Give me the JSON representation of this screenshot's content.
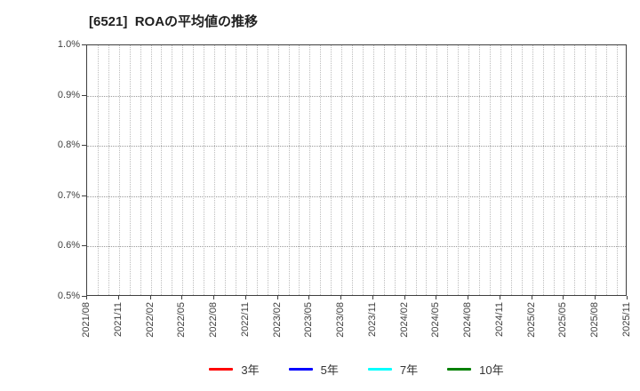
{
  "title": "[6521]  ROAの平均値の推移",
  "chart_data": {
    "type": "line",
    "title": "[6521]  ROAの平均値の推移",
    "x_tick_labels": [
      "2021/08",
      "2021/11",
      "2022/02",
      "2022/05",
      "2022/08",
      "2022/11",
      "2023/02",
      "2023/05",
      "2023/08",
      "2023/11",
      "2024/02",
      "2024/05",
      "2024/08",
      "2024/11",
      "2025/02",
      "2025/05",
      "2025/08",
      "2025/11"
    ],
    "months_per_labeled_tick": 3,
    "minor_vertical_gridline_interval_months": 1,
    "y_tick_labels_top_to_bottom": [
      "1.0%",
      "0.9%",
      "0.8%",
      "0.7%",
      "0.6%",
      "0.5%"
    ],
    "ylabel": "",
    "xlabel": "",
    "ylim": [
      0.5,
      1.0
    ],
    "y_unit": "%",
    "grid": true,
    "legend_position": "bottom",
    "series": [
      {
        "name": "3年",
        "color": "#ff0000",
        "values": []
      },
      {
        "name": "5年",
        "color": "#0000ff",
        "values": []
      },
      {
        "name": "7年",
        "color": "#00ffff",
        "values": []
      },
      {
        "name": "10年",
        "color": "#008000",
        "values": []
      }
    ]
  },
  "colors": {
    "plot_border": "#3f3f3f",
    "vertical_gridline": "#bdbdbd",
    "horizontal_gridline": "#9a9a9a",
    "tick_text": "#3f3f3f",
    "title_text": "#1f1f1f"
  }
}
